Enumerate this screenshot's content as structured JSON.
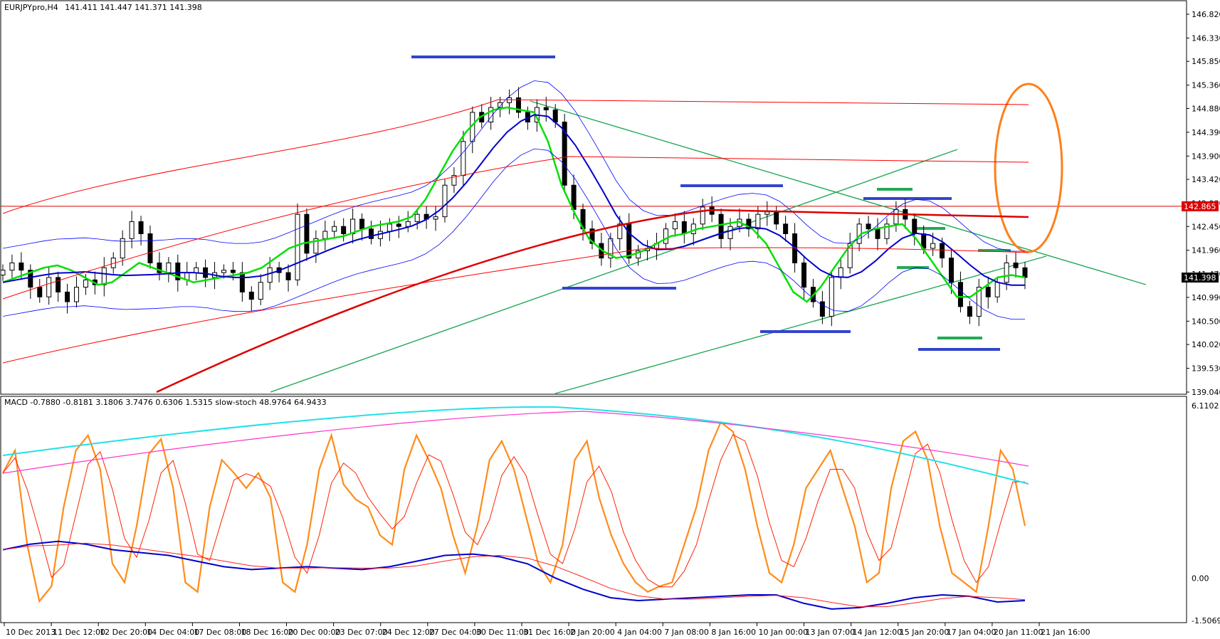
{
  "chart_data": [
    {
      "type": "candlestick",
      "header": {
        "symbol": "EURJPYpro,H4",
        "quote": "141.411 141.447 141.371 141.398"
      },
      "y_ticks": [
        "146.820",
        "146.330",
        "145.850",
        "145.360",
        "144.880",
        "144.390",
        "143.900",
        "143.420",
        "142.930",
        "142.450",
        "141.960",
        "141.470",
        "140.990",
        "140.500",
        "140.020",
        "139.530",
        "139.040"
      ],
      "ylim": [
        139.04,
        146.82
      ],
      "x_ticks": [
        "10 Dec 2013",
        "11 Dec 12:00",
        "12 Dec 20:00",
        "14 Dec 04:00",
        "17 Dec 08:00",
        "18 Dec 16:00",
        "20 Dec 00:00",
        "23 Dec 07:00",
        "24 Dec 12:00",
        "27 Dec 04:00",
        "30 Dec 11:00",
        "31 Dec 16:00",
        "2 Jan 20:00",
        "4 Jan 04:00",
        "7 Jan 08:00",
        "8 Jan 16:00",
        "10 Jan 00:00",
        "13 Jan 07:00",
        "14 Jan 12:00",
        "15 Jan 20:00",
        "17 Jan 04:00",
        "20 Jan 11:00",
        "21 Jan 16:00"
      ],
      "price_tags": [
        {
          "value": 142.865,
          "text": "142.865",
          "color": "#dd0000"
        },
        {
          "value": 141.398,
          "text": "141.398",
          "color": "#000000"
        }
      ],
      "closes": [
        141.55,
        141.7,
        141.55,
        141.2,
        141.0,
        141.4,
        141.1,
        140.9,
        141.2,
        141.35,
        141.25,
        141.6,
        141.8,
        142.2,
        142.55,
        142.3,
        141.7,
        141.5,
        141.7,
        141.35,
        141.5,
        141.6,
        141.4,
        141.5,
        141.55,
        141.5,
        141.1,
        140.95,
        141.3,
        141.6,
        141.5,
        141.35,
        142.7,
        141.9,
        142.2,
        142.35,
        142.45,
        142.3,
        142.6,
        142.4,
        142.2,
        142.35,
        142.5,
        142.45,
        142.55,
        142.7,
        142.6,
        142.65,
        143.3,
        143.5,
        144.2,
        144.8,
        144.6,
        144.9,
        145.0,
        145.1,
        144.8,
        144.6,
        144.9,
        144.85,
        144.6,
        143.3,
        142.8,
        142.4,
        142.1,
        141.8,
        142.2,
        142.5,
        141.8,
        141.95,
        142.0,
        142.1,
        142.4,
        142.55,
        142.3,
        142.5,
        142.85,
        142.7,
        142.2,
        142.45,
        142.6,
        142.4,
        142.7,
        142.75,
        142.5,
        142.3,
        141.7,
        141.2,
        140.9,
        140.6,
        141.4,
        141.6,
        142.1,
        142.5,
        142.4,
        142.2,
        142.5,
        142.8,
        142.6,
        142.3,
        142.0,
        142.1,
        141.8,
        141.3,
        140.8,
        140.6,
        141.2,
        141.0,
        141.3,
        141.7,
        141.6,
        141.4
      ],
      "ma_green": [
        141.3,
        141.4,
        141.5,
        141.6,
        141.65,
        141.55,
        141.4,
        141.25,
        141.3,
        141.5,
        141.7,
        141.6,
        141.5,
        141.4,
        141.3,
        141.35,
        141.4,
        141.45,
        141.5,
        141.6,
        141.8,
        142.0,
        142.1,
        142.15,
        142.2,
        142.25,
        142.35,
        142.45,
        142.5,
        142.55,
        142.65,
        143.0,
        143.5,
        144.0,
        144.4,
        144.7,
        144.85,
        144.9,
        144.85,
        144.8,
        144.2,
        143.3,
        142.7,
        142.2,
        141.95,
        141.8,
        141.85,
        141.95,
        142.1,
        142.25,
        142.3,
        142.4,
        142.45,
        142.5,
        142.55,
        142.4,
        142.1,
        141.6,
        141.1,
        140.9,
        141.2,
        141.6,
        142.0,
        142.3,
        142.4,
        142.45,
        142.5,
        142.2,
        141.8,
        141.4,
        141.0,
        141.0,
        141.2,
        141.4,
        141.45,
        141.4
      ],
      "macd_range": [
        -1.5069,
        6.1102
      ],
      "macd_ticks": [
        "6.1102",
        "0.00",
        "-1.5069"
      ],
      "header2": "MACD -0.7880 -0.8181 3.1806 3.7476 0.6306 1.5315  slow-stoch 48.9764 64.9433",
      "stoch": [
        68,
        80,
        30,
        0,
        8,
        50,
        80,
        88,
        70,
        20,
        10,
        40,
        78,
        86,
        60,
        10,
        5,
        50,
        75,
        68,
        60,
        68,
        55,
        10,
        5,
        30,
        70,
        88,
        62,
        54,
        50,
        35,
        30,
        70,
        88,
        75,
        60,
        35,
        15,
        40,
        75,
        85,
        70,
        45,
        20,
        10,
        30,
        75,
        85,
        55,
        35,
        20,
        10,
        5,
        8,
        10,
        30,
        50,
        80,
        95,
        90,
        70,
        40,
        15,
        10,
        30,
        60,
        70,
        80,
        60,
        40,
        10,
        15,
        60,
        85,
        90,
        75,
        40,
        15,
        10,
        5,
        40,
        80,
        70,
        40
      ],
      "macd_main": [
        1.0,
        1.2,
        1.3,
        1.2,
        1.0,
        0.9,
        0.8,
        0.6,
        0.4,
        0.3,
        0.35,
        0.4,
        0.35,
        0.3,
        0.4,
        0.6,
        0.8,
        0.85,
        0.75,
        0.5,
        0.0,
        -0.4,
        -0.7,
        -0.8,
        -0.75,
        -0.7,
        -0.65,
        -0.6,
        -0.6,
        -0.9,
        -1.1,
        -1.05,
        -0.9,
        -0.7,
        -0.6,
        -0.65,
        -0.85,
        -0.8
      ]
    }
  ]
}
